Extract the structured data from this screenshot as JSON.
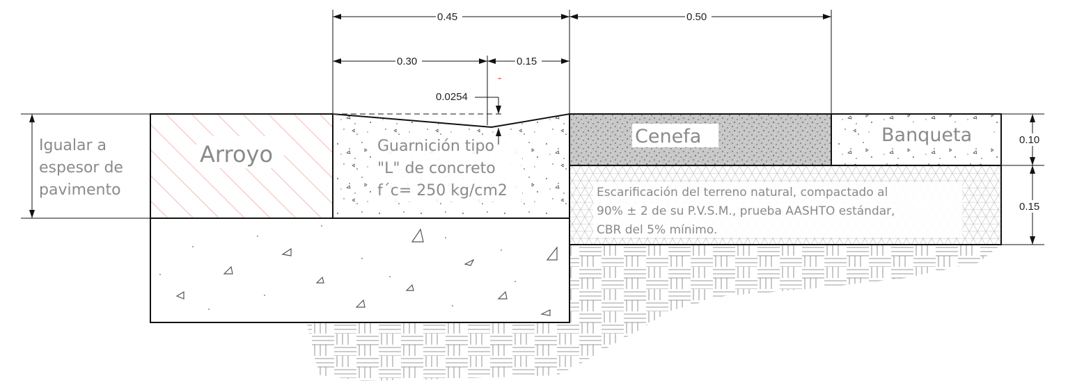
{
  "dimensions": {
    "total_top": "0.45",
    "cenefa_width": "0.50",
    "guarnicion_base": "0.30",
    "guarnicion_tip": "0.15",
    "slope": "0.0254",
    "thickness_top": "0.10",
    "thickness_sub": "0.15",
    "red_mark": "-"
  },
  "labels": {
    "igualar_line1": "Igualar a",
    "igualar_line2": "espesor de",
    "igualar_line3": "pavimento",
    "arroyo": "Arroyo",
    "guarnicion_line1": "Guarnición tipo",
    "guarnicion_line2": "\"L\" de concreto",
    "guarnicion_line3": "f´c= 250 kg/cm2",
    "cenefa": "Cenefa",
    "banqueta": "Banqueta",
    "escarificacion_line1": "Escarificación del terreno natural, compactado al",
    "escarificacion_line2": "90% ± 2 de su P.V.S.M., prueba AASHTO estándar,",
    "escarificacion_line3": "CBR del 5% mínimo."
  },
  "colors": {
    "hatch_arroyo": "#f2a9a0",
    "cenefa_fill": "#c8c8c8",
    "line": "#111111",
    "label_gray": "#8a8a8a",
    "red": "#e0302a"
  }
}
